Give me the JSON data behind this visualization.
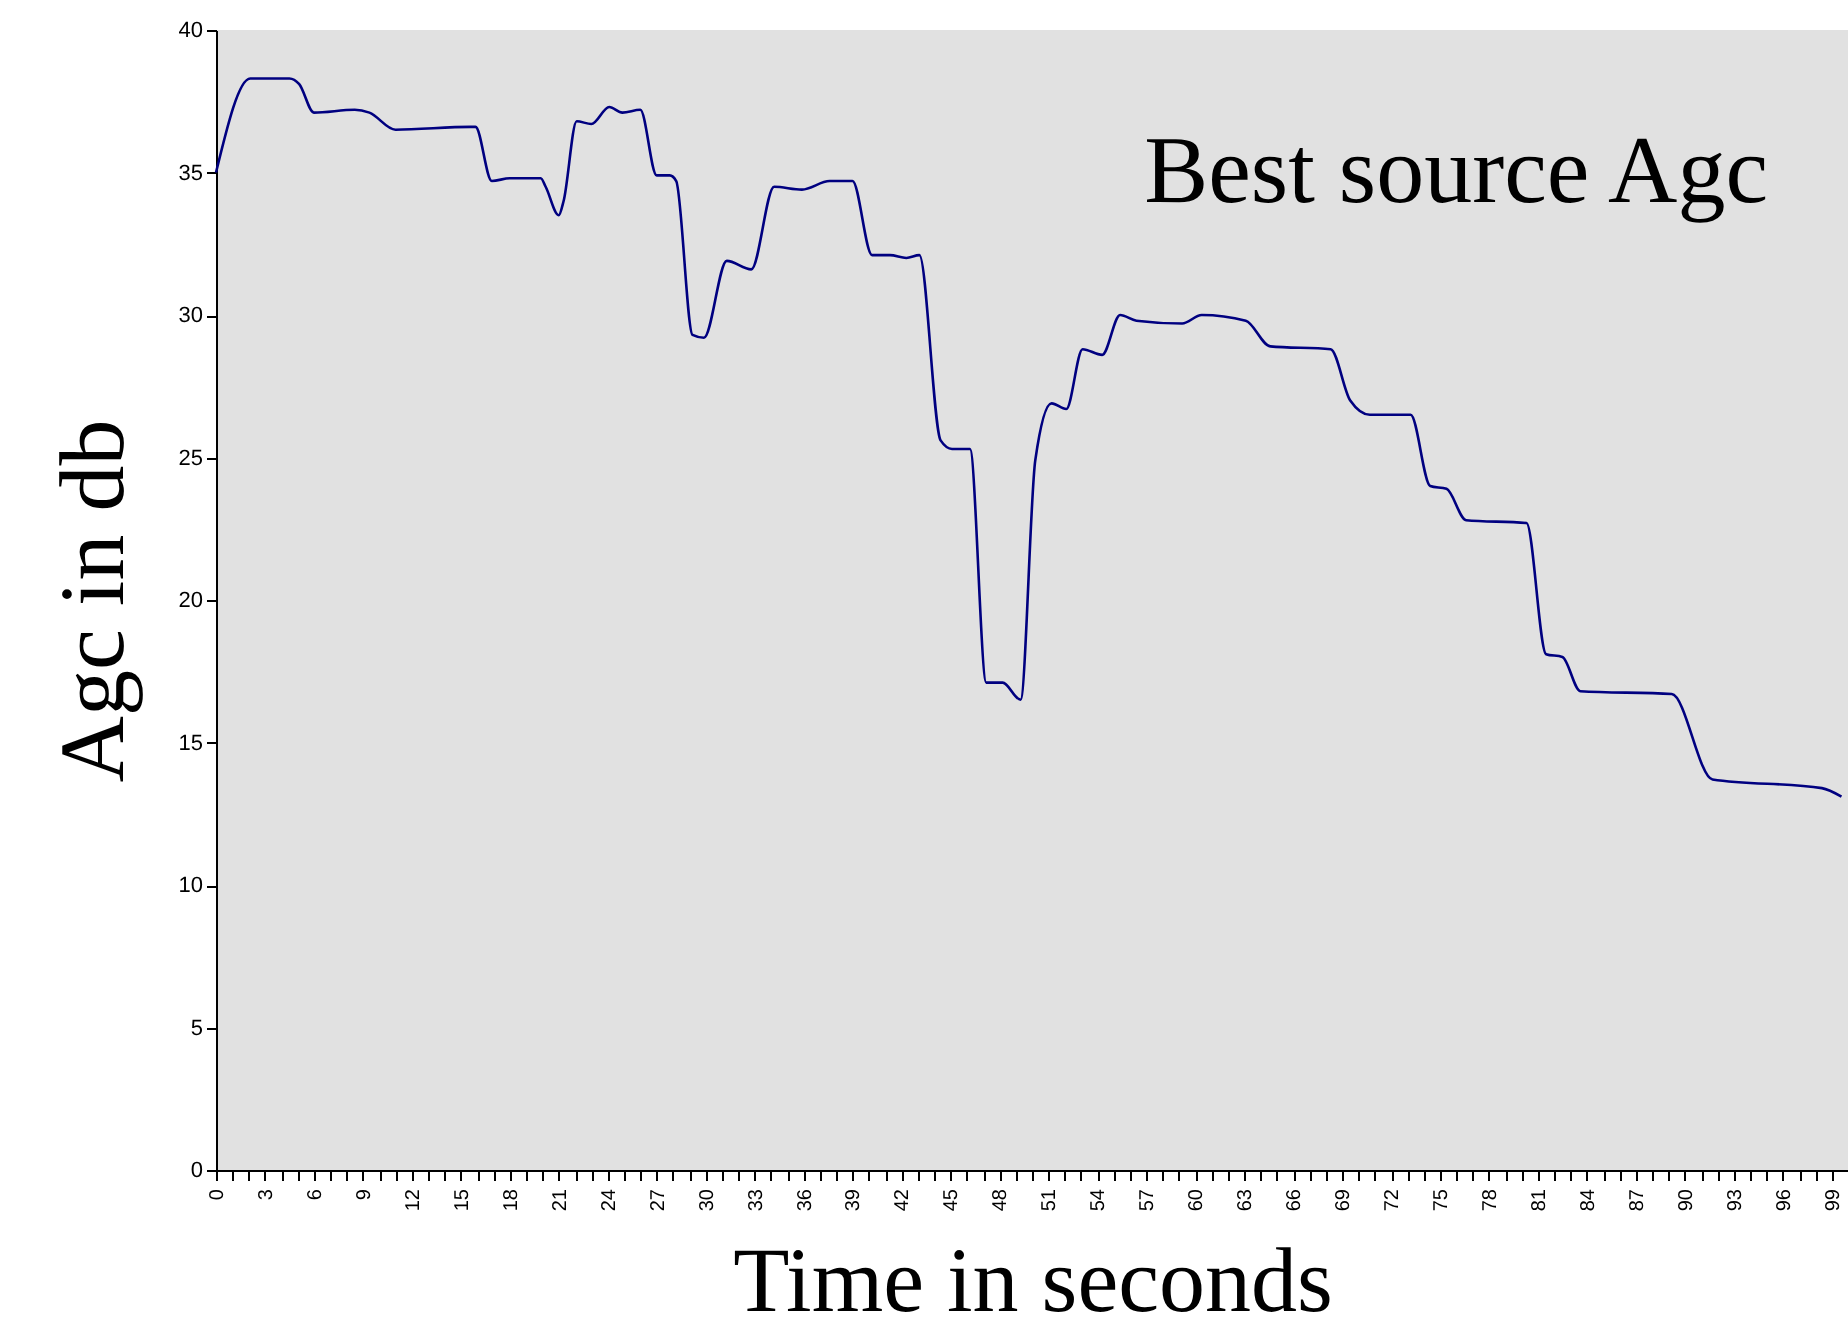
{
  "chart_data": {
    "type": "line",
    "xlabel": "Time in seconds",
    "ylabel": "Agc in db",
    "annotations": [
      "Best source Agc"
    ],
    "x": [
      0,
      2.1,
      4.5,
      5.1,
      6.0,
      8.5,
      9.4,
      11.0,
      15.6,
      15.9,
      16.9,
      18.0,
      19.9,
      20.2,
      21.0,
      21.3,
      22.1,
      23.0,
      24.1,
      24.9,
      26.0,
      27.0,
      27.8,
      28.2,
      29.2,
      29.9,
      31.3,
      32.8,
      34.2,
      35.9,
      37.6,
      39.0,
      40.2,
      41.3,
      42.3,
      43.1,
      44.4,
      45.1,
      46.2,
      47.2,
      48.2,
      49.3,
      50.2,
      51.2,
      52.1,
      53.1,
      54.3,
      55.4,
      56.4,
      59.2,
      60.4,
      63.1,
      64.6,
      68.3,
      69.5,
      70.7,
      73.2,
      74.4,
      75.4,
      76.6,
      80.3,
      81.5,
      82.5,
      83.6,
      89.2,
      91.7,
      98.4,
      99.6
    ],
    "series": [
      {
        "color": "#000080",
        "values": [
          35.0,
          38.3,
          38.3,
          38.1,
          37.1,
          37.2,
          37.1,
          36.5,
          36.6,
          36.6,
          34.7,
          34.8,
          34.8,
          34.5,
          33.5,
          34.0,
          36.8,
          36.7,
          37.3,
          37.1,
          37.2,
          34.9,
          34.9,
          34.7,
          29.3,
          29.2,
          31.9,
          31.6,
          34.5,
          34.4,
          34.7,
          34.7,
          32.1,
          32.1,
          32.0,
          32.1,
          25.6,
          25.3,
          25.3,
          17.1,
          17.1,
          16.5,
          24.9,
          26.9,
          26.7,
          28.8,
          28.6,
          30.0,
          29.8,
          29.7,
          30.0,
          29.8,
          28.9,
          28.8,
          27.0,
          26.5,
          26.5,
          24.0,
          23.9,
          22.8,
          22.7,
          18.1,
          18.0,
          16.8,
          16.7,
          13.7,
          13.4,
          13.1
        ]
      }
    ],
    "xlim": [
      0,
      100
    ],
    "xticks": [
      0,
      {
        "value": 1,
        "label": null
      },
      {
        "value": 2,
        "label": null
      },
      3,
      {
        "value": 4,
        "label": null
      },
      {
        "value": 5,
        "label": null
      },
      6,
      {
        "value": 7,
        "label": null
      },
      {
        "value": 8,
        "label": null
      },
      9,
      {
        "value": 10,
        "label": null
      },
      {
        "value": 11,
        "label": null
      },
      12,
      {
        "value": 13,
        "label": null
      },
      {
        "value": 14,
        "label": null
      },
      15,
      {
        "value": 16,
        "label": null
      },
      {
        "value": 17,
        "label": null
      },
      18,
      {
        "value": 19,
        "label": null
      },
      {
        "value": 20,
        "label": null
      },
      21,
      {
        "value": 22,
        "label": null
      },
      {
        "value": 23,
        "label": null
      },
      24,
      {
        "value": 25,
        "label": null
      },
      {
        "value": 26,
        "label": null
      },
      27,
      {
        "value": 28,
        "label": null
      },
      {
        "value": 29,
        "label": null
      },
      30,
      {
        "value": 31,
        "label": null
      },
      {
        "value": 32,
        "label": null
      },
      33,
      {
        "value": 34,
        "label": null
      },
      {
        "value": 35,
        "label": null
      },
      36,
      {
        "value": 37,
        "label": null
      },
      {
        "value": 38,
        "label": null
      },
      39,
      {
        "value": 40,
        "label": null
      },
      {
        "value": 41,
        "label": null
      },
      42,
      {
        "value": 43,
        "label": null
      },
      {
        "value": 44,
        "label": null
      },
      45,
      {
        "value": 46,
        "label": null
      },
      {
        "value": 47,
        "label": null
      },
      48,
      {
        "value": 49,
        "label": null
      },
      {
        "value": 50,
        "label": null
      },
      51,
      {
        "value": 52,
        "label": null
      },
      {
        "value": 53,
        "label": null
      },
      54,
      {
        "value": 55,
        "label": null
      },
      {
        "value": 56,
        "label": null
      },
      57,
      {
        "value": 58,
        "label": null
      },
      {
        "value": 59,
        "label": null
      },
      60,
      {
        "value": 61,
        "label": null
      },
      {
        "value": 62,
        "label": null
      },
      63,
      {
        "value": 64,
        "label": null
      },
      {
        "value": 65,
        "label": null
      },
      66,
      {
        "value": 67,
        "label": null
      },
      {
        "value": 68,
        "label": null
      },
      69,
      {
        "value": 70,
        "label": null
      },
      {
        "value": 71,
        "label": null
      },
      72,
      {
        "value": 73,
        "label": null
      },
      {
        "value": 74,
        "label": null
      },
      75,
      {
        "value": 76,
        "label": null
      },
      {
        "value": 77,
        "label": null
      },
      78,
      {
        "value": 79,
        "label": null
      },
      {
        "value": 80,
        "label": null
      },
      81,
      {
        "value": 82,
        "label": null
      },
      {
        "value": 83,
        "label": null
      },
      84,
      {
        "value": 85,
        "label": null
      },
      {
        "value": 86,
        "label": null
      },
      87,
      {
        "value": 88,
        "label": null
      },
      {
        "value": 89,
        "label": null
      },
      90,
      {
        "value": 91,
        "label": null
      },
      {
        "value": 92,
        "label": null
      },
      93,
      {
        "value": 94,
        "label": null
      },
      {
        "value": 95,
        "label": null
      },
      96,
      {
        "value": 97,
        "label": null
      },
      {
        "value": 98,
        "label": null
      },
      99
    ],
    "ylim": [
      0,
      40
    ],
    "yticks": [
      0,
      5,
      10,
      15,
      20,
      25,
      30,
      35,
      40
    ],
    "marker": "none",
    "line_style": "solid"
  }
}
